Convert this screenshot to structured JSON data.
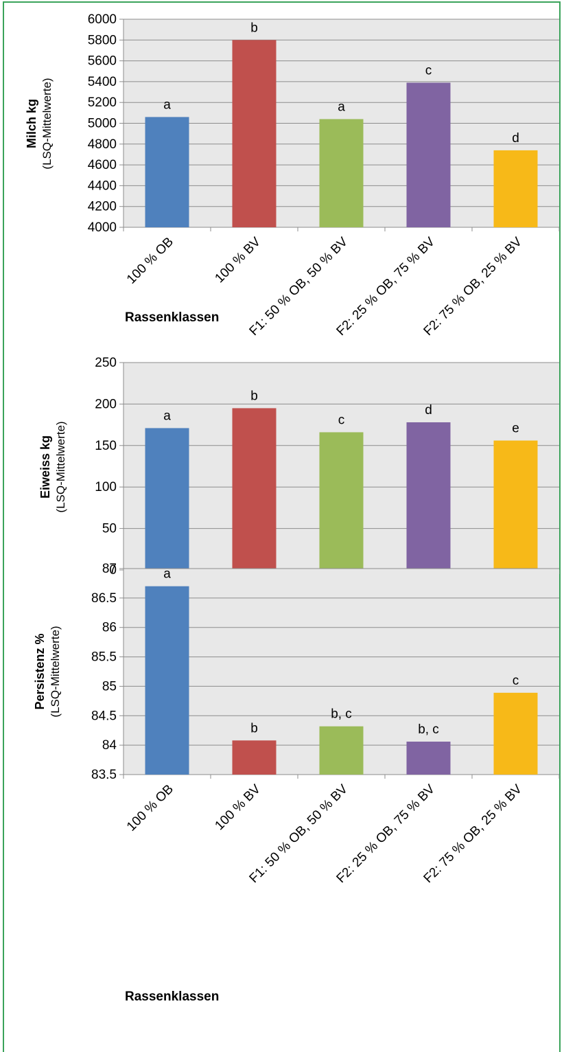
{
  "chart_data": [
    {
      "type": "bar",
      "categories": [
        "100 % OB",
        "100 % BV",
        "F1: 50 % OB, 50 % BV",
        "F2: 25 % OB, 75 % BV",
        "F2: 75 % OB, 25 % BV"
      ],
      "values": [
        5060,
        5800,
        5040,
        5390,
        4740
      ],
      "bar_labels": [
        "a",
        "b",
        "a",
        "c",
        "d"
      ],
      "ylabel": "Milch kg",
      "ylabel_sub": "(LSQ-Mittelwerte)",
      "xlabel": "Rassenklassen",
      "ylim": [
        4000,
        6000
      ],
      "yticks": [
        4000,
        4200,
        4400,
        4600,
        4800,
        5000,
        5200,
        5400,
        5600,
        5800,
        6000
      ],
      "ytick_labels": [
        "4000",
        "4200",
        "4400",
        "4600",
        "4800",
        "5000",
        "5200",
        "5400",
        "5600",
        "5800",
        "6000"
      ],
      "grid": true,
      "legend": "none"
    },
    {
      "type": "bar",
      "categories": [
        "100 % OB",
        "100 % BV",
        "F1: 50 % OB, 50 % BV",
        "F2: 25 % OB, 75 % BV",
        "F2: 75 % OB, 25 % BV"
      ],
      "values": [
        171,
        195,
        166,
        178,
        156
      ],
      "bar_labels": [
        "a",
        "b",
        "c",
        "d",
        "e"
      ],
      "ylabel": "Eiweiss kg",
      "ylabel_sub": "(LSQ-Mittelwerte)",
      "xlabel": "Rassenklassen",
      "ylim": [
        0,
        250
      ],
      "yticks": [
        0,
        50,
        100,
        150,
        200,
        250
      ],
      "ytick_labels": [
        "0",
        "50",
        "100",
        "150",
        "200",
        "250"
      ],
      "grid": true,
      "legend": "none"
    },
    {
      "type": "bar",
      "categories": [
        "100 % OB",
        "100 % BV",
        "F1: 50 % OB, 50 % BV",
        "F2: 25 % OB, 75 % BV",
        "F2: 75 % OB, 25 % BV"
      ],
      "values": [
        86.7,
        84.08,
        84.32,
        84.06,
        84.89
      ],
      "bar_labels": [
        "a",
        "b",
        "b, c",
        "b, c",
        "c"
      ],
      "ylabel": "Persistenz %",
      "ylabel_sub": "(LSQ-Mittelwerte)",
      "xlabel": "Rassenklassen",
      "ylim": [
        83.5,
        87
      ],
      "yticks": [
        83.5,
        84,
        84.5,
        85,
        85.5,
        86,
        86.5,
        87
      ],
      "ytick_labels": [
        "83.5",
        "84",
        "84.5",
        "85",
        "85.5",
        "86",
        "86.5",
        "87"
      ],
      "grid": true,
      "legend": "none"
    }
  ],
  "colors": [
    "#4f81bd",
    "#c0504d",
    "#9bbb59",
    "#8064a2",
    "#f7b918"
  ],
  "plot_background": "#e8e8e8",
  "frame_color": "#3aa35a"
}
